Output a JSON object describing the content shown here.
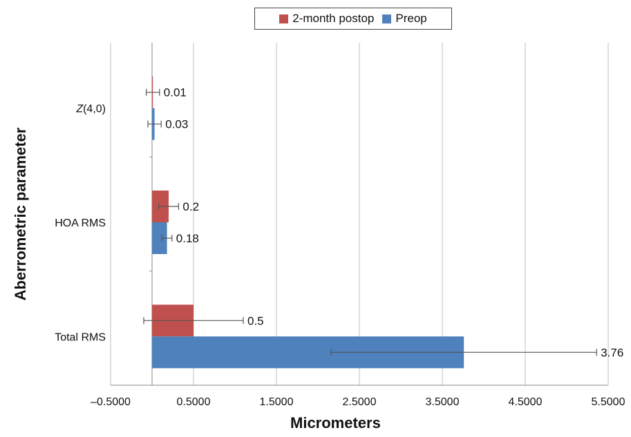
{
  "chart_data": {
    "type": "bar",
    "orientation": "horizontal",
    "xlabel": "Micrometers",
    "ylabel": "Aberrometric parameter",
    "xlim": [
      -0.5,
      5.5
    ],
    "x_ticks": [
      "–0.5000",
      "0.5000",
      "1.5000",
      "2.5000",
      "3.5000",
      "4.5000",
      "5.5000"
    ],
    "x_tick_values": [
      -0.5,
      0.5,
      1.5,
      2.5,
      3.5,
      4.5,
      5.5
    ],
    "categories": [
      {
        "pre": "",
        "italic": "Z",
        "post": "(4,0)"
      },
      {
        "pre": "HOA RMS",
        "italic": "",
        "post": ""
      },
      {
        "pre": "Total RMS",
        "italic": "",
        "post": ""
      }
    ],
    "series": [
      {
        "name": "2-month postop",
        "color": "#c0504d",
        "values": [
          0.01,
          0.2,
          0.5
        ],
        "labels": [
          "0.01",
          "0.2",
          "0.5"
        ],
        "error": [
          0.08,
          0.12,
          0.6
        ]
      },
      {
        "name": "Preop",
        "color": "#4f81bd",
        "values": [
          0.03,
          0.18,
          3.76
        ],
        "labels": [
          "0.03",
          "0.18",
          "3.76"
        ],
        "error": [
          0.08,
          0.06,
          1.6
        ]
      }
    ],
    "grid": true,
    "legend": "top-center"
  }
}
